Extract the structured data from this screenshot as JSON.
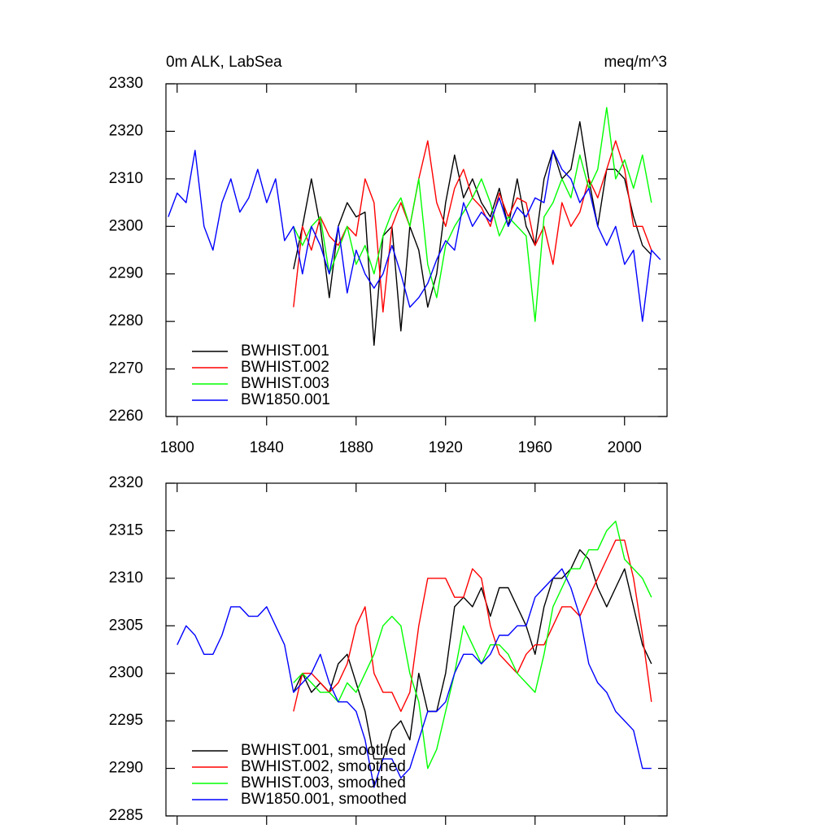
{
  "chart_data": [
    {
      "type": "line",
      "title": "0m ALK, LabSea",
      "units": "meq/m^3",
      "x": [
        1796,
        1800,
        1804,
        1808,
        1812,
        1816,
        1820,
        1824,
        1828,
        1832,
        1836,
        1840,
        1844,
        1848,
        1852,
        1856,
        1860,
        1864,
        1868,
        1872,
        1876,
        1880,
        1884,
        1888,
        1892,
        1896,
        1900,
        1904,
        1908,
        1912,
        1916,
        1920,
        1924,
        1928,
        1932,
        1936,
        1940,
        1944,
        1948,
        1952,
        1956,
        1960,
        1964,
        1968,
        1972,
        1976,
        1980,
        1984,
        1988,
        1992,
        1996,
        2000,
        2004,
        2008,
        2012,
        2016
      ],
      "series": [
        {
          "name": "BWHIST.001",
          "color": "#000000",
          "values": [
            null,
            null,
            null,
            null,
            null,
            null,
            null,
            null,
            null,
            null,
            null,
            null,
            null,
            null,
            2291,
            2300,
            2310,
            2300,
            2285,
            2300,
            2305,
            2302,
            2303,
            2275,
            2298,
            2300,
            2278,
            2300,
            2295,
            2283,
            2290,
            2305,
            2315,
            2306,
            2310,
            2305,
            2302,
            2308,
            2300,
            2310,
            2300,
            2296,
            2310,
            2316,
            2310,
            2312,
            2322,
            2310,
            2300,
            2312,
            2312,
            2310,
            2302,
            2296,
            2294,
            null
          ]
        },
        {
          "name": "BWHIST.002",
          "color": "#ff0000",
          "values": [
            null,
            null,
            null,
            null,
            null,
            null,
            null,
            null,
            null,
            null,
            null,
            null,
            null,
            null,
            2283,
            2300,
            2295,
            2302,
            2298,
            2296,
            2300,
            2298,
            2310,
            2305,
            2282,
            2300,
            2305,
            2300,
            2310,
            2318,
            2305,
            2300,
            2308,
            2312,
            2306,
            2304,
            2300,
            2307,
            2302,
            2306,
            2305,
            2296,
            2300,
            2292,
            2305,
            2300,
            2303,
            2310,
            2306,
            2312,
            2318,
            2312,
            2300,
            2300,
            2295,
            null
          ]
        },
        {
          "name": "BWHIST.003",
          "color": "#00ff00",
          "values": [
            null,
            null,
            null,
            null,
            null,
            null,
            null,
            null,
            null,
            null,
            null,
            null,
            null,
            null,
            2300,
            2296,
            2300,
            2302,
            2290,
            2295,
            2300,
            2292,
            2296,
            2290,
            2298,
            2303,
            2306,
            2300,
            2310,
            2292,
            2285,
            2296,
            2300,
            2303,
            2306,
            2310,
            2305,
            2298,
            2302,
            2300,
            2298,
            2280,
            2302,
            2305,
            2310,
            2306,
            2315,
            2308,
            2312,
            2325,
            2310,
            2314,
            2308,
            2315,
            2305,
            null
          ]
        },
        {
          "name": "BW1850.001",
          "color": "#0000ff",
          "values": [
            2302,
            2307,
            2305,
            2316,
            2300,
            2295,
            2305,
            2310,
            2303,
            2306,
            2312,
            2305,
            2310,
            2297,
            2300,
            2290,
            2300,
            2296,
            2290,
            2300,
            2286,
            2295,
            2290,
            2287,
            2290,
            2296,
            2290,
            2283,
            2285,
            2288,
            2293,
            2297,
            2295,
            2305,
            2300,
            2303,
            2301,
            2306,
            2300,
            2304,
            2302,
            2306,
            2305,
            2316,
            2312,
            2310,
            2305,
            2308,
            2300,
            2296,
            2300,
            2292,
            2295,
            2280,
            2295,
            2293
          ]
        }
      ],
      "xlim": [
        1795,
        2019
      ],
      "xticks": [
        1800,
        1840,
        1880,
        1920,
        1960,
        2000
      ],
      "ylim": [
        2260,
        2330
      ],
      "yticks": [
        2260,
        2270,
        2280,
        2290,
        2300,
        2310,
        2320,
        2330
      ],
      "show_xtick_labels": true,
      "legend": "lower left"
    },
    {
      "type": "line",
      "x": [
        1796,
        1800,
        1804,
        1808,
        1812,
        1816,
        1820,
        1824,
        1828,
        1832,
        1836,
        1840,
        1844,
        1848,
        1852,
        1856,
        1860,
        1864,
        1868,
        1872,
        1876,
        1880,
        1884,
        1888,
        1892,
        1896,
        1900,
        1904,
        1908,
        1912,
        1916,
        1920,
        1924,
        1928,
        1932,
        1936,
        1940,
        1944,
        1948,
        1952,
        1956,
        1960,
        1964,
        1968,
        1972,
        1976,
        1980,
        1984,
        1988,
        1992,
        1996,
        2000,
        2004,
        2008,
        2012,
        2016
      ],
      "series": [
        {
          "name": "BWHIST.001, smoothed",
          "color": "#000000",
          "values": [
            null,
            null,
            null,
            null,
            null,
            null,
            null,
            null,
            null,
            null,
            null,
            null,
            null,
            null,
            2298,
            2300,
            2298,
            2299,
            2298,
            2301,
            2302,
            2299,
            2296,
            2291,
            2291,
            2294,
            2295,
            2293,
            2300,
            2296,
            2296,
            2300,
            2307,
            2308,
            2307,
            2309,
            2306,
            2309,
            2309,
            2307,
            2305,
            2302,
            2307,
            2310,
            2310,
            2311,
            2313,
            2312,
            2309,
            2307,
            2309,
            2311,
            2307,
            2303,
            2301,
            null
          ]
        },
        {
          "name": "BWHIST.002, smoothed",
          "color": "#ff0000",
          "values": [
            null,
            null,
            null,
            null,
            null,
            null,
            null,
            null,
            null,
            null,
            null,
            null,
            null,
            null,
            2296,
            2300,
            2300,
            2299,
            2298,
            2299,
            2301,
            2305,
            2307,
            2300,
            2298,
            2298,
            2296,
            2298,
            2305,
            2310,
            2310,
            2310,
            2308,
            2308,
            2311,
            2310,
            2305,
            2302,
            2301,
            2300,
            2302,
            2303,
            2303,
            2305,
            2307,
            2307,
            2306,
            2308,
            2310,
            2312,
            2314,
            2314,
            2310,
            2304,
            2297,
            null
          ]
        },
        {
          "name": "BWHIST.003, smoothed",
          "color": "#00ff00",
          "values": [
            null,
            null,
            null,
            null,
            null,
            null,
            null,
            null,
            null,
            null,
            null,
            null,
            null,
            null,
            2299,
            2300,
            2299,
            2298,
            2298,
            2297,
            2299,
            2298,
            2300,
            2302,
            2305,
            2306,
            2305,
            2300,
            2297,
            2290,
            2292,
            2296,
            2300,
            2305,
            2303,
            2301,
            2303,
            2303,
            2302,
            2300,
            2299,
            2298,
            2302,
            2307,
            2309,
            2311,
            2311,
            2313,
            2313,
            2315,
            2316,
            2312,
            2311,
            2310,
            2308,
            null
          ]
        },
        {
          "name": "BW1850.001, smoothed",
          "color": "#0000ff",
          "values": [
            null,
            2303,
            2305,
            2304,
            2302,
            2302,
            2304,
            2307,
            2307,
            2306,
            2306,
            2307,
            2305,
            2303,
            2298,
            2299,
            2300,
            2302,
            2299,
            2297,
            2297,
            2296,
            2293,
            2288,
            2291,
            2291,
            2289,
            2290,
            2293,
            2296,
            2296,
            2297,
            2300,
            2302,
            2302,
            2301,
            2302,
            2304,
            2304,
            2305,
            2305,
            2308,
            2309,
            2310,
            2311,
            2309,
            2306,
            2301,
            2299,
            2298,
            2296,
            2295,
            2294,
            2290,
            2290,
            null
          ]
        }
      ],
      "xlim": [
        1795,
        2019
      ],
      "xticks": [
        1800,
        1840,
        1880,
        1920,
        1960,
        2000
      ],
      "ylim": [
        2285,
        2320
      ],
      "yticks": [
        2285,
        2290,
        2295,
        2300,
        2305,
        2310,
        2315,
        2320
      ],
      "show_xtick_labels": false,
      "legend": "lower left"
    }
  ]
}
